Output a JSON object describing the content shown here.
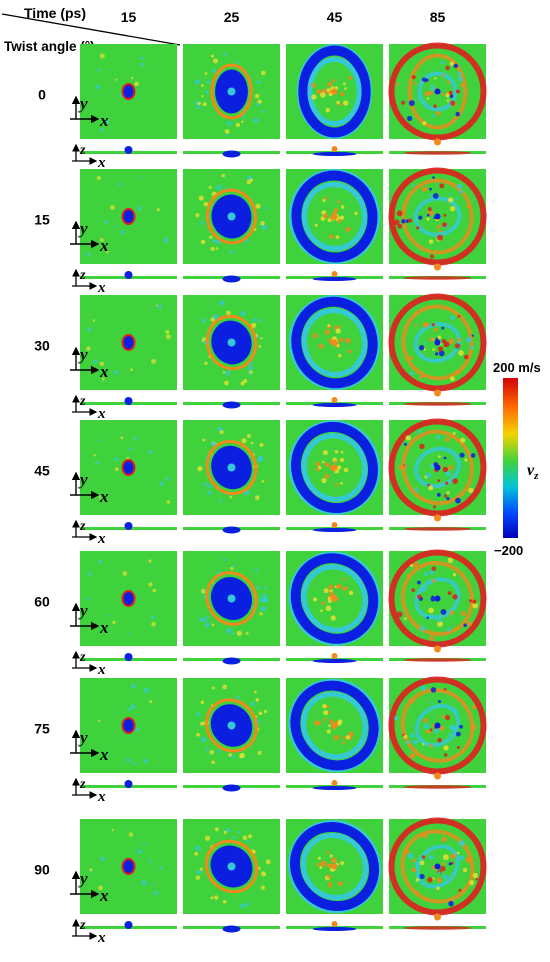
{
  "header": {
    "time_label": "Time (ps)",
    "twist_label": "Twist angle (°)"
  },
  "time_values": [
    "15",
    "25",
    "45",
    "85"
  ],
  "angle_values": [
    "0",
    "15",
    "30",
    "45",
    "60",
    "75",
    "90"
  ],
  "axes": {
    "x": "x",
    "y": "y",
    "z": "z"
  },
  "colorbar": {
    "max_label": "200 m/s",
    "min_label": "−200",
    "variable": "v",
    "subscript": "z",
    "colors": [
      "#d40000",
      "#ff6a00",
      "#f5d300",
      "#3fd23c",
      "#00c4d8",
      "#0045ff",
      "#0000b8"
    ]
  },
  "colors": {
    "background": "#3fd23c",
    "wave_blue": "#0a1fe0",
    "ring_orange": "#f08a1c",
    "ring_red": "#e01e1e",
    "cyan": "#35c9d8",
    "yellow": "#e6e030"
  }
}
